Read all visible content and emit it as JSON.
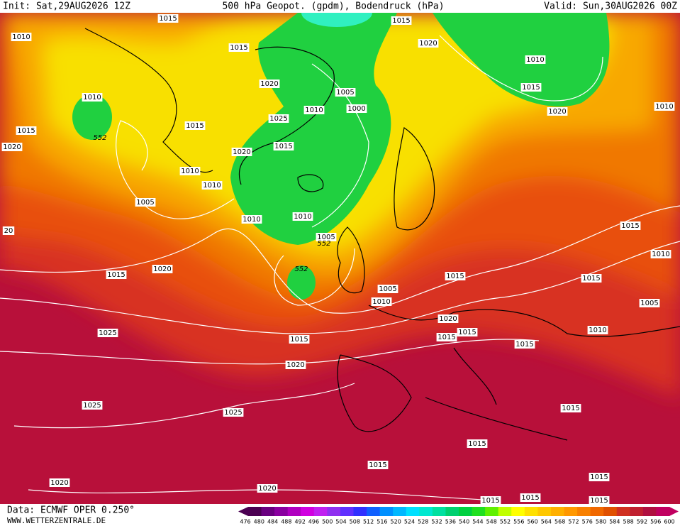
{
  "header": {
    "init": "Init: Sat,29AUG2026 12Z",
    "title": "500 hPa Geopot. (gpdm), Bodendruck (hPa)",
    "valid": "Valid: Sun,30AUG2026 00Z"
  },
  "isobar_labels": [
    "1015",
    "1015",
    "1010",
    "1015",
    "1020",
    "1010",
    "1020",
    "1010",
    "1005",
    "1015",
    "1010",
    "1000",
    "1010",
    "1020",
    "1025",
    "1015",
    "1015",
    "1015",
    "1020",
    "1020",
    "1010",
    "1010",
    "1005",
    "1010",
    "1010",
    "1015",
    "1005",
    "20",
    "1010",
    "1015",
    "1020",
    "1015",
    "1015",
    "1005",
    "1010",
    "1005",
    "1020",
    "1015",
    "1015",
    "1010",
    "1025",
    "1015",
    "1015",
    "1020",
    "1025",
    "1015",
    "1025",
    "1015",
    "1015",
    "1015",
    "1020",
    "1020",
    "1015",
    "1015",
    "1015"
  ],
  "height_labels": [
    "552",
    "552",
    "552"
  ],
  "footer": {
    "source": "Data: ECMWF OPER 0.250°",
    "website": "WWW.WETTERZENTRALE.DE"
  },
  "colorbar": {
    "labels": [
      476,
      480,
      484,
      488,
      492,
      496,
      500,
      504,
      508,
      512,
      516,
      520,
      524,
      528,
      532,
      536,
      540,
      544,
      548,
      552,
      556,
      560,
      564,
      568,
      572,
      576,
      580,
      584,
      588,
      592,
      596,
      600
    ],
    "colors": [
      "#4b0052",
      "#6a0080",
      "#8a00a0",
      "#b000c0",
      "#d000e0",
      "#c020f0",
      "#9030f0",
      "#6030ff",
      "#3030ff",
      "#1060ff",
      "#0090ff",
      "#00b8ff",
      "#00e0ff",
      "#00e8d0",
      "#00e0a0",
      "#00d070",
      "#00d040",
      "#20e020",
      "#60f000",
      "#c0ff00",
      "#ffff00",
      "#ffe000",
      "#ffc800",
      "#ffb000",
      "#ff9800",
      "#f88000",
      "#f06800",
      "#e05000",
      "#d03020",
      "#c02030",
      "#b01040",
      "#c00060"
    ]
  }
}
